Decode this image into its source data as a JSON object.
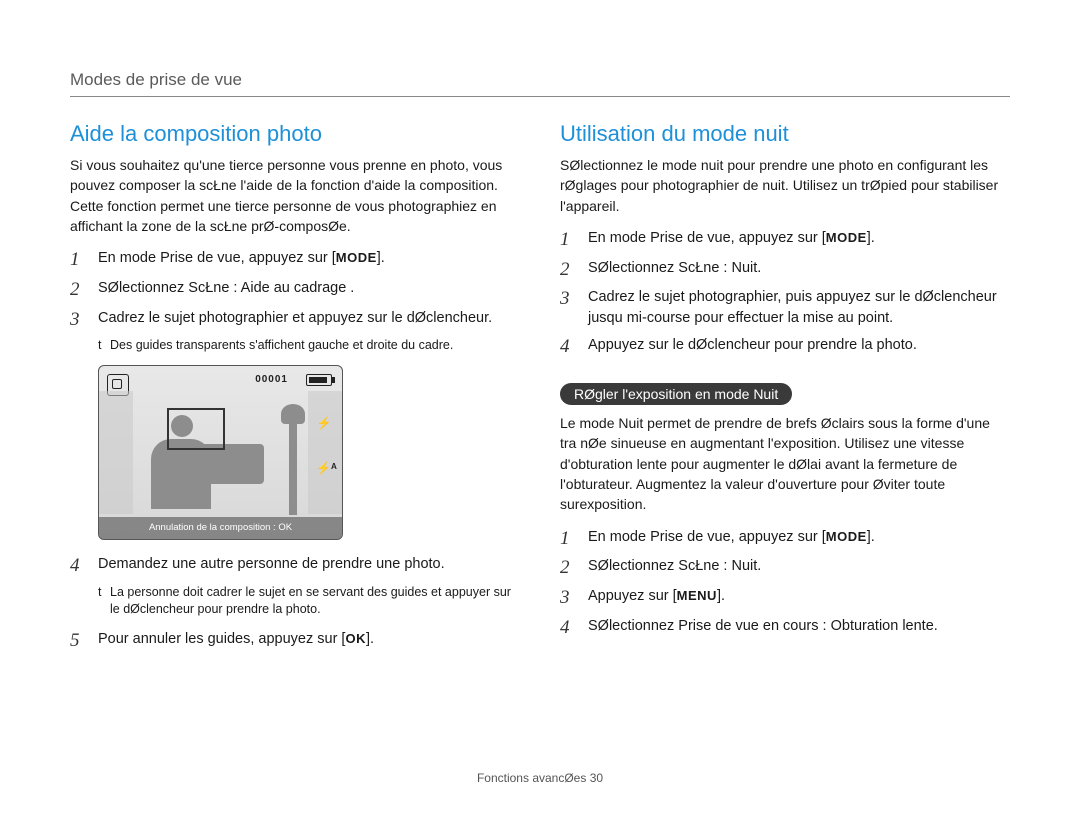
{
  "header": "Modes de prise de vue",
  "left": {
    "title": "Aide   la composition photo",
    "intro": "Si vous souhaitez qu'une tierce personne vous prenne en photo, vous pouvez composer la scŁne   l'aide de la fonction d'aide   la composition. Cette fonction permet   une tierce personne de vous photographiez en affichant la zone de la scŁne prØ-composØe.",
    "steps": [
      {
        "n": "1",
        "text": "En mode Prise de vue, appuyez sur [",
        "suffix": "].",
        "after": ""
      },
      {
        "n": "2",
        "text": "SØlectionnez ScŁne  : Aide au cadrage .",
        "suffix": "",
        "after": ""
      },
      {
        "n": "3",
        "text": "Cadrez le sujet   photographier et appuyez sur le dØclencheur.",
        "suffix": "",
        "after": ""
      }
    ],
    "note1_bullet": "t",
    "note1": "Des guides transparents s'affichent   gauche et   droite du cadre.",
    "preview": {
      "counter": "00001",
      "footer": "Annulation de la composition : OK",
      "flash_icon": "⚡",
      "flash_auto_icon": "⚡ᴬ"
    },
    "steps2": [
      {
        "n": "4",
        "text": "Demandez   une autre personne de prendre une photo."
      },
      {
        "n": "5",
        "text": "Pour annuler les guides, appuyez sur [",
        "ok": true,
        "suffix": "]."
      }
    ],
    "note2_bullet": "t",
    "note2": "La personne doit cadrer le sujet en se servant des guides et appuyer sur le dØclencheur pour prendre la photo."
  },
  "right": {
    "title": "Utilisation du mode nuit",
    "intro": "SØlectionnez le mode nuit pour prendre une photo en configurant les rØglages pour photographier de nuit. Utilisez un trØpied pour stabiliser l'appareil.",
    "steps": [
      {
        "n": "1",
        "text": "En mode Prise de vue, appuyez sur [",
        "mode": true,
        "suffix": "]."
      },
      {
        "n": "2",
        "text": "SØlectionnez ScŁne  : Nuit."
      },
      {
        "n": "3",
        "text": "Cadrez le sujet   photographier, puis appuyez sur le dØclencheur jusqu   mi-course pour effectuer la mise au point."
      },
      {
        "n": "4",
        "text": "Appuyez sur le dØclencheur pour prendre la photo."
      }
    ],
    "pill": "RØgler l'exposition en mode Nuit",
    "pill_text": "Le mode Nuit permet de prendre de brefs Øclairs sous la forme d'une tra nØe sinueuse en augmentant l'exposition. Utilisez une vitesse d'obturation lente pour augmenter le dØlai avant la fermeture de l'obturateur. Augmentez la valeur d'ouverture pour Øviter toute surexposition.",
    "steps2": [
      {
        "n": "1",
        "text": "En mode Prise de vue, appuyez sur [",
        "mode": true,
        "suffix": "]."
      },
      {
        "n": "2",
        "text": "SØlectionnez ScŁne  : Nuit."
      },
      {
        "n": "3",
        "text": "Appuyez sur [",
        "menu": true,
        "suffix": "]."
      },
      {
        "n": "4",
        "text": "SØlectionnez Prise de vue en cours  : Obturation lente."
      }
    ]
  },
  "labels": {
    "mode": "MODE",
    "ok": "OK",
    "menu": "MENU"
  },
  "footer": {
    "text": "Fonctions avancØes",
    "page": "30"
  }
}
